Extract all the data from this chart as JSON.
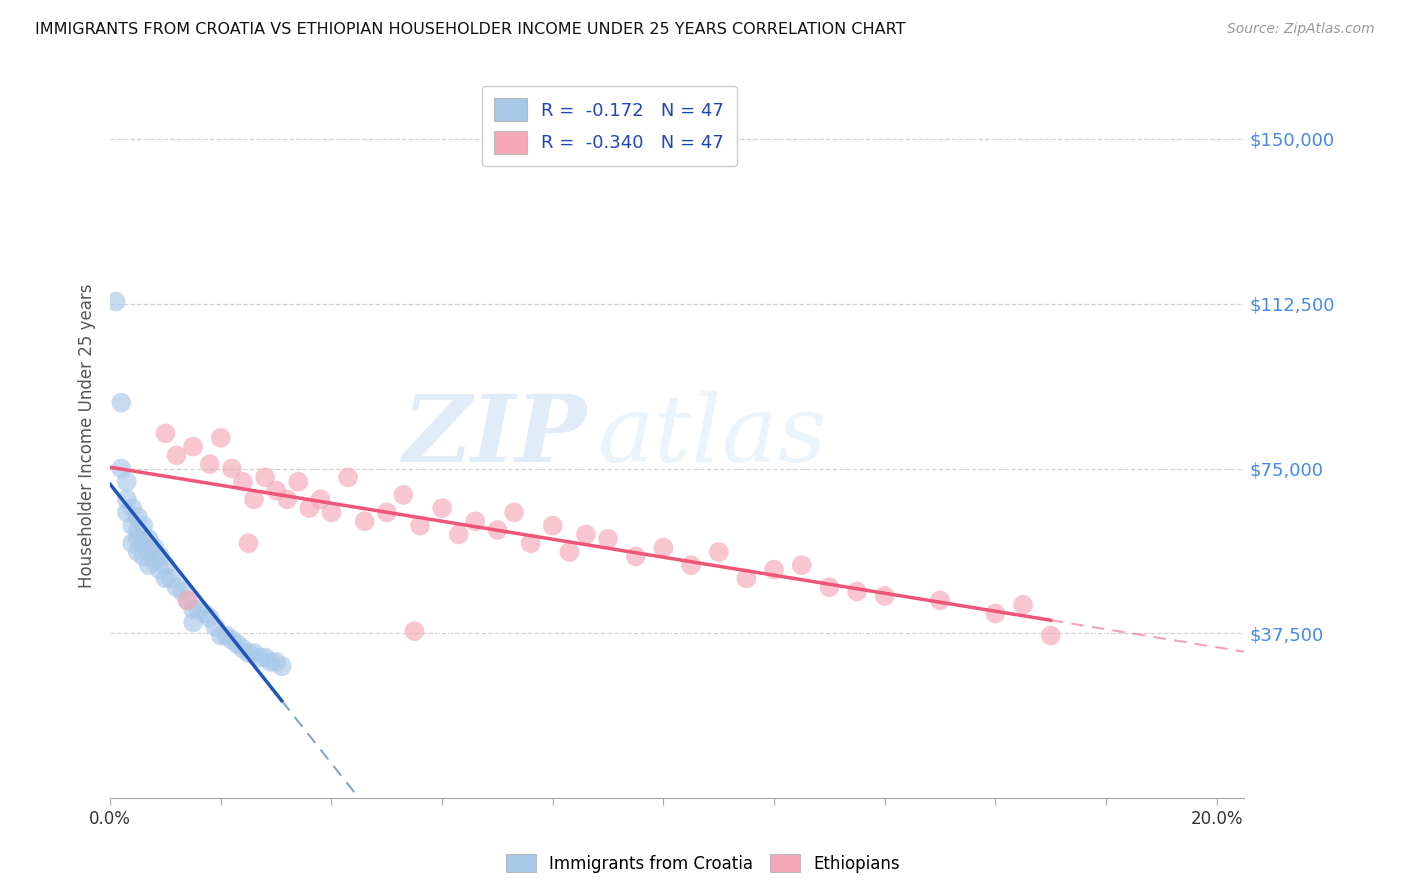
{
  "title": "IMMIGRANTS FROM CROATIA VS ETHIOPIAN HOUSEHOLDER INCOME UNDER 25 YEARS CORRELATION CHART",
  "source": "Source: ZipAtlas.com",
  "ylabel": "Householder Income Under 25 years",
  "ytick_labels": [
    "$37,500",
    "$75,000",
    "$112,500",
    "$150,000"
  ],
  "ytick_vals": [
    37500,
    75000,
    112500,
    150000
  ],
  "ylim": [
    0,
    165000
  ],
  "xlim": [
    0.0,
    0.205
  ],
  "legend_r_croatia": "-0.172",
  "legend_r_ethiopia": "-0.340",
  "legend_n": "47",
  "croatia_color": "#a8c8e8",
  "ethiopia_color": "#f4a8b8",
  "croatia_line_color": "#2255bb",
  "ethiopia_line_color": "#ee5577",
  "watermark_zip": "ZIP",
  "watermark_atlas": "atlas",
  "bg_color": "#ffffff",
  "grid_color": "#cccccc",
  "croatia_x": [
    0.001,
    0.002,
    0.002,
    0.003,
    0.003,
    0.003,
    0.004,
    0.004,
    0.004,
    0.005,
    0.005,
    0.005,
    0.005,
    0.006,
    0.006,
    0.006,
    0.007,
    0.007,
    0.007,
    0.008,
    0.008,
    0.009,
    0.009,
    0.01,
    0.01,
    0.011,
    0.012,
    0.013,
    0.014,
    0.015,
    0.015,
    0.016,
    0.017,
    0.018,
    0.019,
    0.02,
    0.021,
    0.022,
    0.023,
    0.024,
    0.025,
    0.026,
    0.027,
    0.028,
    0.029,
    0.03,
    0.031
  ],
  "croatia_y": [
    113000,
    90000,
    75000,
    72000,
    68000,
    65000,
    66000,
    62000,
    58000,
    64000,
    61000,
    59000,
    56000,
    62000,
    58000,
    55000,
    59000,
    56000,
    53000,
    57000,
    54000,
    55000,
    52000,
    53000,
    50000,
    50000,
    48000,
    47000,
    45000,
    43000,
    40000,
    43000,
    42000,
    41000,
    39000,
    37000,
    37000,
    36000,
    35000,
    34000,
    33000,
    33000,
    32000,
    32000,
    31000,
    31000,
    30000
  ],
  "ethiopia_x": [
    0.01,
    0.012,
    0.015,
    0.018,
    0.02,
    0.022,
    0.024,
    0.026,
    0.028,
    0.03,
    0.032,
    0.034,
    0.036,
    0.038,
    0.04,
    0.043,
    0.046,
    0.05,
    0.053,
    0.056,
    0.06,
    0.063,
    0.066,
    0.07,
    0.073,
    0.076,
    0.08,
    0.083,
    0.086,
    0.09,
    0.095,
    0.1,
    0.105,
    0.11,
    0.115,
    0.12,
    0.125,
    0.13,
    0.135,
    0.14,
    0.15,
    0.16,
    0.165,
    0.17,
    0.014,
    0.025,
    0.055
  ],
  "ethiopia_y": [
    83000,
    78000,
    80000,
    76000,
    82000,
    75000,
    72000,
    68000,
    73000,
    70000,
    68000,
    72000,
    66000,
    68000,
    65000,
    73000,
    63000,
    65000,
    69000,
    62000,
    66000,
    60000,
    63000,
    61000,
    65000,
    58000,
    62000,
    56000,
    60000,
    59000,
    55000,
    57000,
    53000,
    56000,
    50000,
    52000,
    53000,
    48000,
    47000,
    46000,
    45000,
    42000,
    44000,
    37000,
    45000,
    58000,
    38000
  ]
}
